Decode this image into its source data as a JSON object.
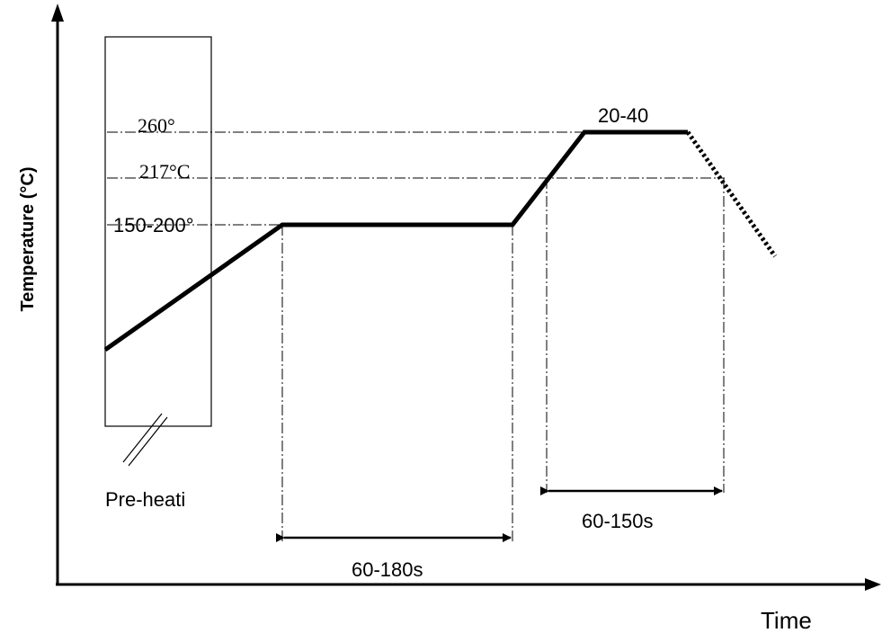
{
  "axes": {
    "y_label": "Temperature (°C)",
    "x_label": "Time"
  },
  "levels": {
    "peak": "260°",
    "liquidus": "217°C",
    "soak": "150-200°"
  },
  "annotations": {
    "peak_time": "20-40",
    "preheat": "Pre-heati",
    "soak_time": "60-180s",
    "liquidus_time": "60-150s"
  },
  "colors": {
    "line": "#000000",
    "background": "#ffffff"
  }
}
